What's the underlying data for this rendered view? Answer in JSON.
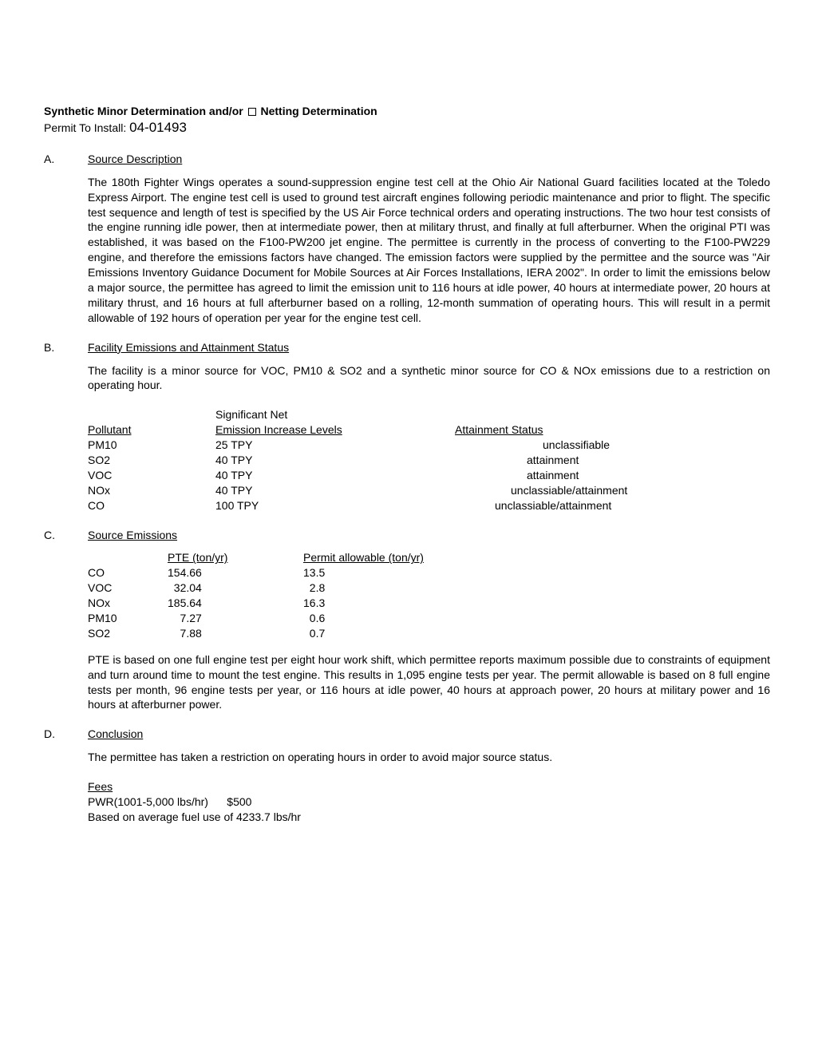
{
  "header": {
    "title_bold": "Synthetic Minor Determination and/or  ",
    "title_after_checkbox": "  Netting Determination",
    "permit_label": "Permit To Install: ",
    "permit_number": "04-01493"
  },
  "sectionA": {
    "letter": "A.",
    "title": "Source Description",
    "paragraph": "The 180th Fighter Wings operates a sound-suppression engine test cell at the Ohio Air National Guard facilities located at the Toledo Express Airport.  The engine test cell is used to ground test aircraft engines following periodic maintenance and prior to flight.  The specific test sequence and length of test is specified by the US Air Force technical orders and operating instructions.  The two hour test consists of the engine running  idle power, then at intermediate power,  then  at military thrust, and finally at full afterburner.  When the original PTI was established, it was based on the F100-PW200 jet engine.  The permittee is currently in the process of converting to the F100-PW229 engine, and therefore the emissions factors have changed.  The emission factors were supplied by the permittee and the source was \"Air Emissions Inventory Guidance Document for Mobile Sources at Air Forces Installations, IERA 2002\".  In order to limit the emissions below a major source, the permittee has agreed to limit the emission unit to 116 hours at idle power, 40 hours at intermediate power, 20 hours at military thrust, and 16 hours at full afterburner based on a rolling, 12-month summation of operating hours.  This will result in a permit allowable of 192 hours of operation per year for the engine test cell."
  },
  "sectionB": {
    "letter": "B.",
    "title": "Facility Emissions and Attainment Status",
    "paragraph": "The facility is a minor source for VOC, PM10 & SO2 and a synthetic minor source for CO & NOx emissions due to a restriction on operating hour.",
    "table_header_col1": "Pollutant",
    "table_header_col2_line1": "Significant Net",
    "table_header_col2_line2": "Emission Increase Levels",
    "table_header_col3": "Attainment Status",
    "rows": [
      {
        "pollutant": "PM10",
        "level": "25 TPY",
        "status": "unclassifiable"
      },
      {
        "pollutant": "SO2",
        "level": "40 TPY",
        "status": "attainment"
      },
      {
        "pollutant": "VOC",
        "level": "40 TPY",
        "status": "attainment"
      },
      {
        "pollutant": "NOx",
        "level": "40 TPY",
        "status": "unclassiable/attainment"
      },
      {
        "pollutant": "CO",
        "level": "100 TPY",
        "status": "unclassiable/attainment"
      }
    ],
    "status_offsets": [
      "110px",
      "90px",
      "90px",
      "70px",
      "50px"
    ]
  },
  "sectionC": {
    "letter": "C.",
    "title": "Source Emissions",
    "table_header_col2": "PTE (ton/yr)",
    "table_header_col3": "Permit allowable (ton/yr)",
    "rows": [
      {
        "pollutant": "CO",
        "pte": "154.66",
        "allowable": "13.5"
      },
      {
        "pollutant": "VOC",
        "pte": "  32.04",
        "allowable": "  2.8"
      },
      {
        "pollutant": "NOx",
        "pte": "185.64",
        "allowable": "16.3"
      },
      {
        "pollutant": "PM10",
        "pte": "    7.27",
        "allowable": "  0.6"
      },
      {
        "pollutant": "SO2",
        "pte": "    7.88",
        "allowable": "  0.7"
      }
    ],
    "paragraph": "PTE is based on one full engine test per eight hour work shift, which permittee reports maximum possible due to constraints of equipment and turn around time to mount the test engine.  This results in 1,095 engine tests per year.  The permit allowable is based on 8 full engine tests per month, 96 engine tests per year, or 116 hours at idle power, 40 hours at approach power, 20 hours at military power and 16 hours at afterburner power."
  },
  "sectionD": {
    "letter": "D.",
    "title": "Conclusion",
    "paragraph": "The permittee has taken a restriction on operating hours in order to avoid major source status.",
    "fees_title": "Fees",
    "fees_line1": "PWR(1001-5,000 lbs/hr)      $500",
    "fees_line2": "Based on average fuel use of 4233.7 lbs/hr"
  }
}
